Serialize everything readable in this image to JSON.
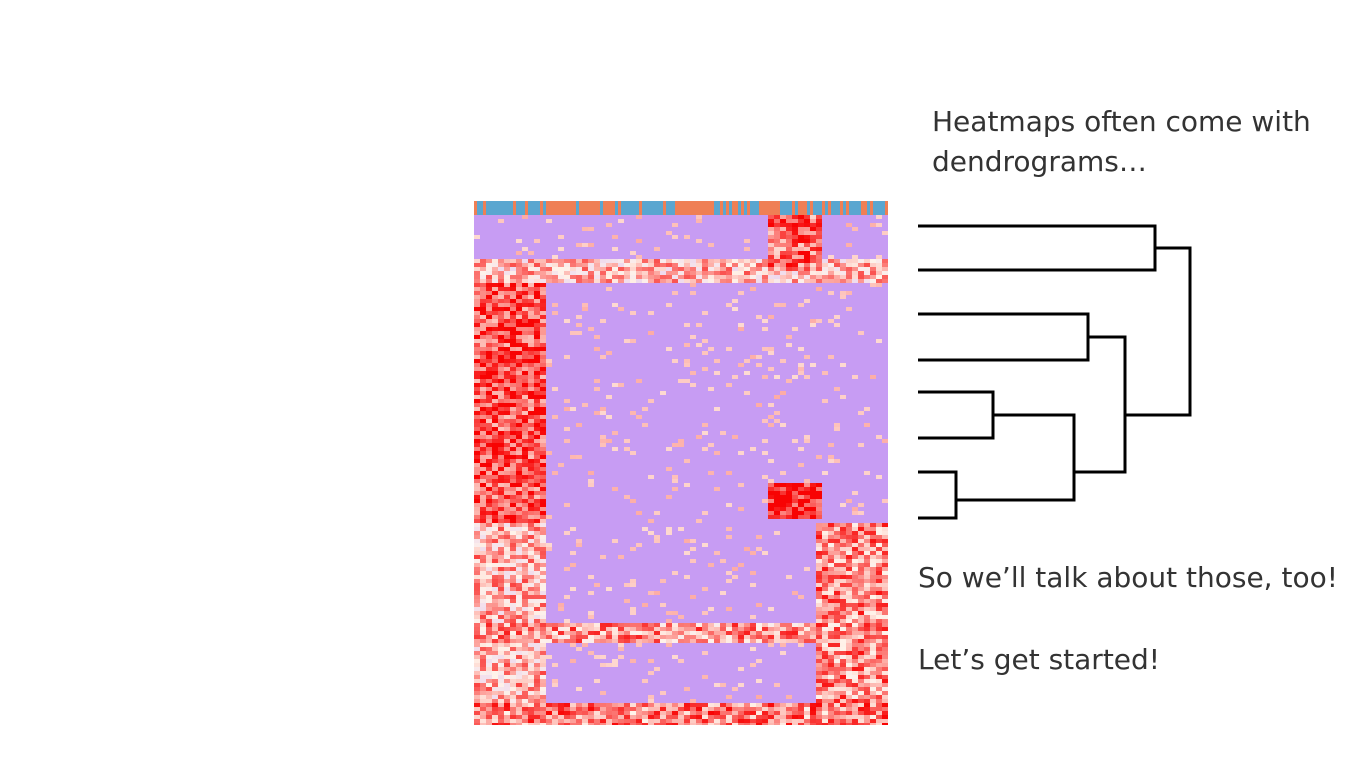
{
  "slide": {
    "intro_line1": "Heatmaps often come with",
    "intro_line2": "dendrograms…",
    "talk_text": "So we’ll talk about those, too!",
    "start_text": "Let’s get started!"
  },
  "colors": {
    "low": "#c79cf3",
    "mid": "#fff3ea",
    "high": "#f80303",
    "group_blue": "#5aa6d0",
    "group_orange": "#ef7f55",
    "dendrogram_line": "#000000"
  }
}
